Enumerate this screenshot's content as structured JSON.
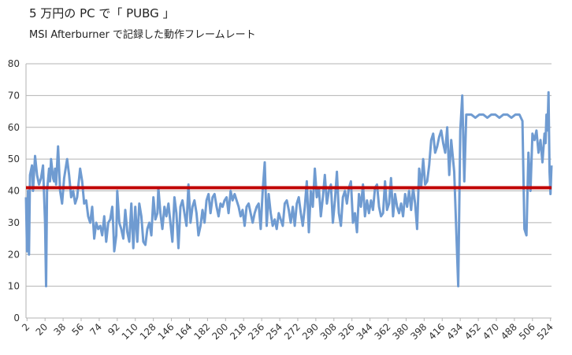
{
  "chart_data": {
    "type": "line",
    "title": "5 万円の PC で「 PUBG 」",
    "subtitle": "MSI Afterburner で記録した動作フレームレート",
    "color": "#6f9bd1",
    "reference_line": {
      "value": 41,
      "color": "#c00000"
    },
    "xlim": [
      1,
      525
    ],
    "xticks": [
      2,
      20,
      38,
      56,
      74,
      92,
      110,
      128,
      146,
      164,
      182,
      200,
      218,
      236,
      254,
      272,
      290,
      308,
      326,
      344,
      362,
      380,
      398,
      416,
      434,
      452,
      470,
      488,
      506,
      524
    ],
    "ylim": [
      0,
      80
    ],
    "yticks": [
      0,
      10,
      20,
      30,
      40,
      50,
      60,
      70,
      80
    ],
    "grid": true,
    "x": [
      1,
      2,
      3,
      4,
      5,
      7,
      8,
      10,
      12,
      14,
      16,
      18,
      20,
      21,
      22,
      24,
      25,
      26,
      28,
      29,
      30,
      31,
      33,
      35,
      37,
      39,
      41,
      42,
      44,
      46,
      48,
      50,
      52,
      55,
      57,
      59,
      61,
      63,
      65,
      67,
      69,
      71,
      73,
      75,
      77,
      79,
      81,
      83,
      85,
      87,
      88,
      89,
      91,
      92,
      94,
      96,
      98,
      100,
      102,
      104,
      106,
      108,
      110,
      112,
      114,
      116,
      118,
      120,
      122,
      124,
      126,
      128,
      130,
      132,
      133,
      135,
      137,
      139,
      141,
      143,
      145,
      147,
      149,
      151,
      153,
      155,
      157,
      159,
      161,
      163,
      165,
      167,
      169,
      171,
      173,
      175,
      177,
      179,
      181,
      183,
      185,
      187,
      189,
      191,
      193,
      195,
      197,
      199,
      201,
      203,
      205,
      207,
      209,
      211,
      213,
      215,
      217,
      219,
      221,
      223,
      225,
      227,
      229,
      231,
      233,
      235,
      237,
      239,
      241,
      243,
      245,
      247,
      249,
      251,
      253,
      255,
      257,
      259,
      261,
      263,
      265,
      267,
      269,
      271,
      273,
      275,
      277,
      279,
      281,
      283,
      285,
      287,
      289,
      291,
      293,
      295,
      297,
      299,
      301,
      303,
      305,
      307,
      309,
      311,
      313,
      315,
      317,
      319,
      321,
      323,
      325,
      327,
      329,
      331,
      333,
      335,
      337,
      339,
      341,
      343,
      345,
      347,
      349,
      351,
      353,
      355,
      357,
      359,
      361,
      363,
      365,
      367,
      369,
      371,
      373,
      375,
      377,
      379,
      381,
      383,
      385,
      387,
      389,
      391,
      393,
      395,
      397,
      399,
      401,
      403,
      405,
      407,
      409,
      411,
      413,
      415,
      417,
      419,
      421,
      423,
      425,
      428,
      432,
      434,
      436,
      438,
      440,
      445,
      449,
      453,
      457,
      461,
      465,
      469,
      473,
      477,
      481,
      485,
      489,
      493,
      496,
      498,
      500,
      502,
      504,
      506,
      508,
      510,
      512,
      514,
      516,
      518,
      519,
      520,
      521,
      522,
      523,
      524,
      525
    ],
    "values": [
      38,
      21,
      40,
      20,
      45,
      48,
      40,
      51,
      45,
      42,
      44,
      48,
      30,
      10,
      40,
      47,
      43,
      50,
      44,
      43,
      47,
      42,
      54,
      40,
      36,
      44,
      48,
      50,
      45,
      38,
      40,
      36,
      38,
      47,
      43,
      36,
      37,
      32,
      30,
      35,
      25,
      30,
      28,
      29,
      26,
      32,
      24,
      30,
      31,
      35,
      29,
      21,
      26,
      40,
      30,
      28,
      25,
      34,
      27,
      24,
      36,
      22,
      35,
      24,
      36,
      32,
      24,
      23,
      28,
      30,
      26,
      38,
      31,
      33,
      41,
      33,
      28,
      35,
      32,
      36,
      30,
      24,
      38,
      33,
      22,
      35,
      37,
      33,
      29,
      42,
      30,
      35,
      37,
      33,
      26,
      29,
      34,
      30,
      37,
      39,
      33,
      38,
      39,
      35,
      32,
      36,
      35,
      37,
      38,
      33,
      40,
      37,
      39,
      37,
      35,
      32,
      34,
      29,
      35,
      36,
      33,
      30,
      33,
      35,
      36,
      28,
      40,
      49,
      29,
      39,
      33,
      29,
      31,
      28,
      33,
      31,
      29,
      36,
      37,
      34,
      30,
      35,
      29,
      36,
      38,
      33,
      29,
      35,
      43,
      27,
      40,
      35,
      47,
      38,
      41,
      32,
      38,
      45,
      36,
      40,
      42,
      30,
      37,
      46,
      33,
      29,
      38,
      40,
      36,
      41,
      43,
      30,
      33,
      27,
      39,
      35,
      42,
      32,
      37,
      33,
      37,
      34,
      41,
      42,
      35,
      32,
      33,
      43,
      34,
      36,
      44,
      32,
      39,
      35,
      33,
      36,
      32,
      39,
      35,
      40,
      34,
      41,
      36,
      28,
      47,
      41,
      50,
      42,
      43,
      48,
      56,
      58,
      52,
      54,
      57,
      59,
      55,
      52,
      60,
      45,
      56,
      46,
      10,
      59,
      70,
      43,
      64,
      64,
      63,
      64,
      64,
      63,
      64,
      64,
      63,
      64,
      64,
      63,
      64,
      64,
      62,
      28,
      26,
      52,
      40,
      58,
      56,
      59,
      52,
      56,
      49,
      58,
      55,
      64,
      59,
      71,
      46,
      39,
      48
    ]
  }
}
